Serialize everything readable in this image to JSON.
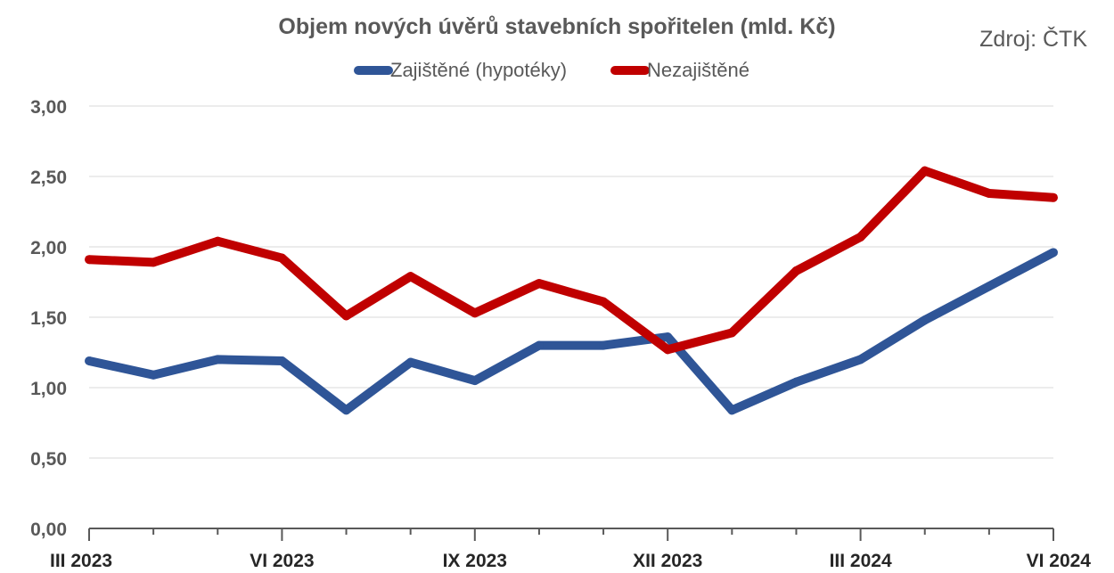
{
  "chart_data": {
    "type": "line",
    "title": "Objem nových úvěrů stavebních spořitelen (mld. Kč)",
    "source": "Zdroj: ČTK",
    "legend_position": "top",
    "grid": true,
    "ylim": [
      0,
      3
    ],
    "y_ticks": [
      "0,00",
      "0,50",
      "1,00",
      "1,50",
      "2,00",
      "2,50",
      "3,00"
    ],
    "x_labels": [
      "III 2023",
      "VI 2023",
      "IX 2023",
      "XII 2023",
      "III 2024",
      "VI 2024"
    ],
    "categories": [
      "III 2023",
      "IV 2023",
      "V 2023",
      "VI 2023",
      "VII 2023",
      "VIII 2023",
      "IX 2023",
      "X 2023",
      "XI 2023",
      "XII 2023",
      "I 2024",
      "II 2024",
      "III 2024",
      "IV 2024",
      "V 2024",
      "VI 2024"
    ],
    "series": [
      {
        "name": "Zajištěné (hypotéky)",
        "color": "#2F5597",
        "values": [
          1.19,
          1.09,
          1.2,
          1.19,
          0.84,
          1.18,
          1.05,
          1.3,
          1.3,
          1.36,
          0.84,
          1.04,
          1.2,
          1.48,
          1.72,
          1.96
        ]
      },
      {
        "name": "Nezajištěné",
        "color": "#C00000",
        "values": [
          1.91,
          1.89,
          2.04,
          1.92,
          1.51,
          1.79,
          1.53,
          1.74,
          1.61,
          1.27,
          1.39,
          1.83,
          2.07,
          2.54,
          2.38,
          2.35
        ]
      }
    ]
  }
}
